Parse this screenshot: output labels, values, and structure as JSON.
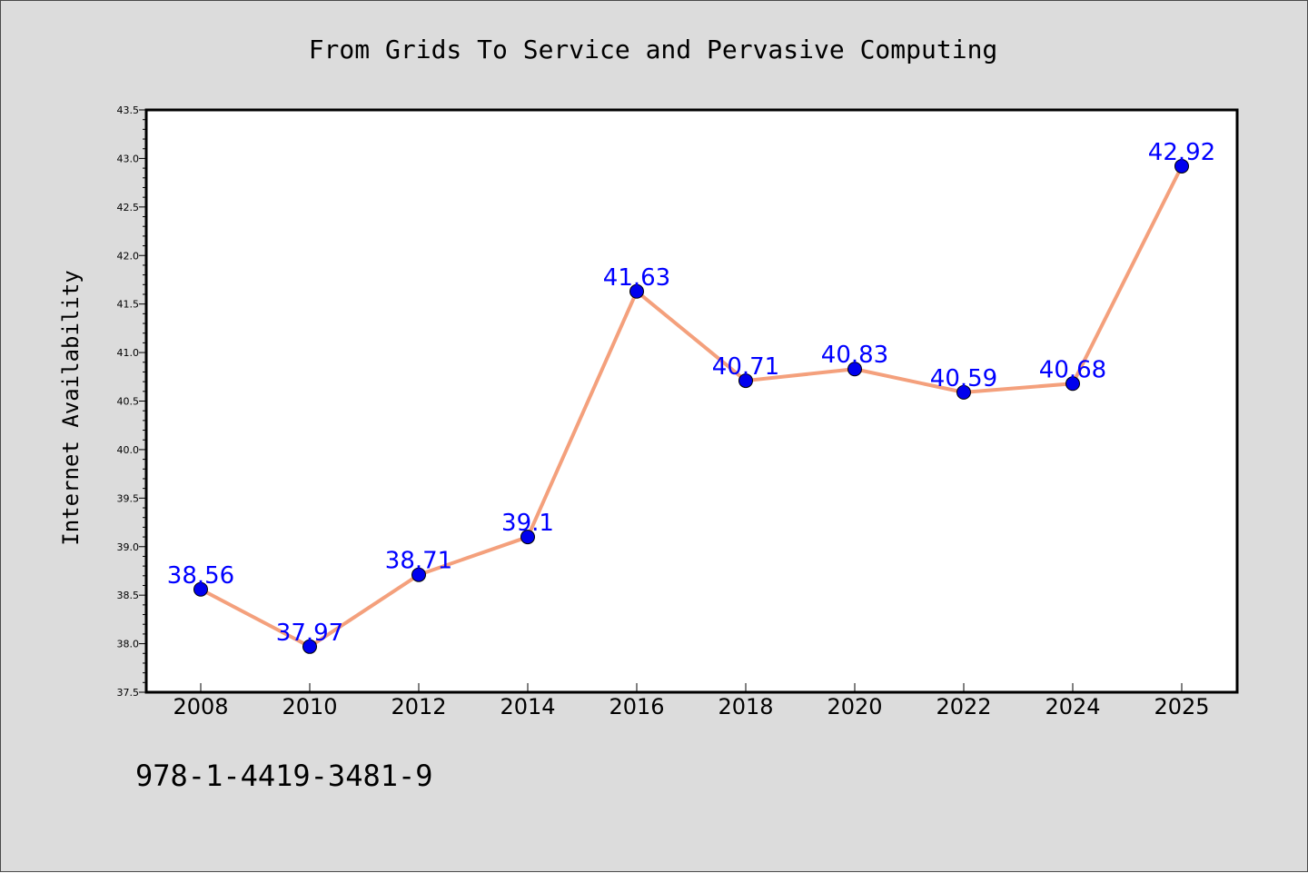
{
  "chart_data": {
    "type": "line",
    "title": "From Grids To Service and Pervasive Computing",
    "xlabel": "",
    "ylabel": "Internet Availability",
    "categories": [
      "2008",
      "2010",
      "2012",
      "2014",
      "2016",
      "2018",
      "2020",
      "2022",
      "2024",
      "2025"
    ],
    "series": [
      {
        "values": [
          38.56,
          37.97,
          38.71,
          39.1,
          41.63,
          40.71,
          40.83,
          40.59,
          40.68,
          42.92
        ],
        "data_labels": [
          "38.56",
          "37.97",
          "38.71",
          "39.1",
          "41.63",
          "40.71",
          "40.83",
          "40.59",
          "40.68",
          "42.92"
        ],
        "line_color": "#f4a07c",
        "marker_color": "#0000ee",
        "label_color": "#0000ff"
      }
    ],
    "ylim": [
      37.5,
      43.5
    ],
    "y_ticks": [
      "37.5",
      "38.0",
      "38.5",
      "39.0",
      "39.5",
      "40.0",
      "40.5",
      "41.0",
      "41.5",
      "42.0",
      "42.5",
      "43.0",
      "43.5"
    ],
    "grid": false,
    "legend": "none"
  },
  "footer": {
    "isbn": "978-1-4419-3481-9"
  },
  "colors": {
    "background": "#dcdcdc",
    "plot_background": "#ffffff"
  }
}
